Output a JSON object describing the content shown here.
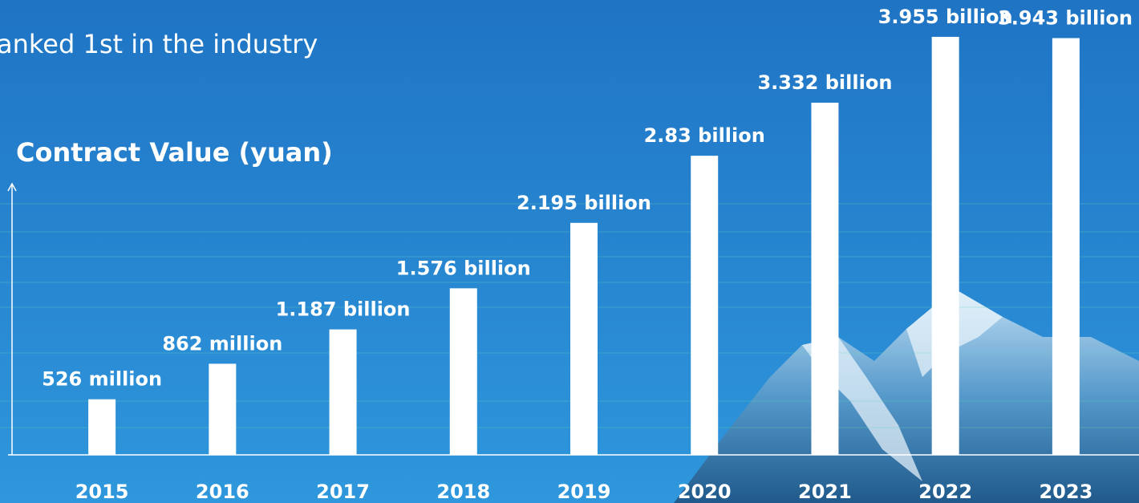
{
  "chart_data": {
    "type": "bar",
    "subtitle": "anked 1st in the industry",
    "y_label": "Contract Value (yuan)",
    "categories": [
      "2015",
      "2016",
      "2017",
      "2018",
      "2019",
      "2020",
      "2021",
      "2022",
      "2023"
    ],
    "values": [
      526000000,
      862000000,
      1187000000,
      1576000000,
      2195000000,
      2830000000,
      3332000000,
      3955000000,
      3943000000
    ],
    "value_labels": [
      "526 million",
      "862 million",
      "1.187 billion",
      "1.576 billion",
      "2.195 billion",
      "2.83 billion",
      "3.332 billion",
      "3.955 billion",
      "3.943 billion"
    ],
    "color": "#ffffff",
    "ylim": [
      0,
      4000000000
    ]
  }
}
